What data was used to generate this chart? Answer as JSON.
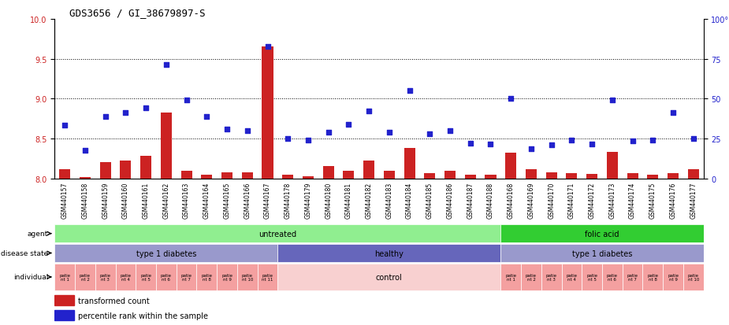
{
  "title": "GDS3656 / GI_38679897-S",
  "samples": [
    "GSM440157",
    "GSM440158",
    "GSM440159",
    "GSM440160",
    "GSM440161",
    "GSM440162",
    "GSM440163",
    "GSM440164",
    "GSM440165",
    "GSM440166",
    "GSM440167",
    "GSM440178",
    "GSM440179",
    "GSM440180",
    "GSM440181",
    "GSM440182",
    "GSM440183",
    "GSM440184",
    "GSM440185",
    "GSM440186",
    "GSM440187",
    "GSM440188",
    "GSM440168",
    "GSM440169",
    "GSM440170",
    "GSM440171",
    "GSM440172",
    "GSM440173",
    "GSM440174",
    "GSM440175",
    "GSM440176",
    "GSM440177"
  ],
  "red_bars": [
    8.12,
    8.02,
    8.2,
    8.22,
    8.28,
    8.83,
    8.1,
    8.05,
    8.08,
    8.08,
    9.65,
    8.05,
    8.03,
    8.15,
    8.1,
    8.22,
    8.1,
    8.38,
    8.07,
    8.1,
    8.05,
    8.05,
    8.32,
    8.12,
    8.08,
    8.07,
    8.06,
    8.33,
    8.07,
    8.05,
    8.07,
    8.12
  ],
  "blue_dots": [
    8.67,
    8.35,
    8.78,
    8.83,
    8.88,
    9.43,
    8.98,
    8.78,
    8.62,
    8.6,
    9.65,
    8.5,
    8.48,
    8.58,
    8.68,
    8.84,
    8.58,
    9.1,
    8.56,
    8.6,
    8.44,
    8.43,
    9.0,
    8.37,
    8.42,
    8.48,
    8.43,
    8.98,
    8.47,
    8.48,
    8.83,
    8.5
  ],
  "ylim_left": [
    8.0,
    10.0
  ],
  "ylim_right": [
    0,
    100
  ],
  "yticks_left": [
    8.0,
    8.5,
    9.0,
    9.5,
    10.0
  ],
  "yticks_right": [
    0,
    25,
    50,
    75,
    100
  ],
  "agent_groups": [
    {
      "label": "untreated",
      "start": 0,
      "end": 22,
      "color": "#90EE90"
    },
    {
      "label": "folic acid",
      "start": 22,
      "end": 32,
      "color": "#32CD32"
    }
  ],
  "disease_groups": [
    {
      "label": "type 1 diabetes",
      "start": 0,
      "end": 11,
      "color": "#9999CC"
    },
    {
      "label": "healthy",
      "start": 11,
      "end": 22,
      "color": "#6666BB"
    },
    {
      "label": "type 1 diabetes",
      "start": 22,
      "end": 32,
      "color": "#9999CC"
    }
  ],
  "individual_groups_left": [
    {
      "label": "patie\nnt 1",
      "start": 0,
      "end": 1
    },
    {
      "label": "patie\nnt 2",
      "start": 1,
      "end": 2
    },
    {
      "label": "patie\nnt 3",
      "start": 2,
      "end": 3
    },
    {
      "label": "patie\nnt 4",
      "start": 3,
      "end": 4
    },
    {
      "label": "patie\nnt 5",
      "start": 4,
      "end": 5
    },
    {
      "label": "patie\nnt 6",
      "start": 5,
      "end": 6
    },
    {
      "label": "patie\nnt 7",
      "start": 6,
      "end": 7
    },
    {
      "label": "patie\nnt 8",
      "start": 7,
      "end": 8
    },
    {
      "label": "patie\nnt 9",
      "start": 8,
      "end": 9
    },
    {
      "label": "patie\nnt 10",
      "start": 9,
      "end": 10
    },
    {
      "label": "patie\nnt 11",
      "start": 10,
      "end": 11
    }
  ],
  "individual_middle": {
    "label": "control",
    "start": 11,
    "end": 22
  },
  "individual_groups_right": [
    {
      "label": "patie\nnt 1",
      "start": 22,
      "end": 23
    },
    {
      "label": "patie\nnt 2",
      "start": 23,
      "end": 24
    },
    {
      "label": "patie\nnt 3",
      "start": 24,
      "end": 25
    },
    {
      "label": "patie\nnt 4",
      "start": 25,
      "end": 26
    },
    {
      "label": "patie\nnt 5",
      "start": 26,
      "end": 27
    },
    {
      "label": "patie\nnt 6",
      "start": 27,
      "end": 28
    },
    {
      "label": "patie\nnt 7",
      "start": 28,
      "end": 29
    },
    {
      "label": "patie\nnt 8",
      "start": 29,
      "end": 30
    },
    {
      "label": "patie\nnt 9",
      "start": 30,
      "end": 31
    },
    {
      "label": "patie\nnt 10",
      "start": 31,
      "end": 32
    }
  ],
  "bar_color": "#CC2222",
  "dot_color": "#2222CC",
  "bar_bottom": 8.0,
  "dot_size": 18,
  "bg_gray": "#DDDDDD",
  "salmon_color": "#F4A0A0",
  "control_color": "#F8D0D0"
}
